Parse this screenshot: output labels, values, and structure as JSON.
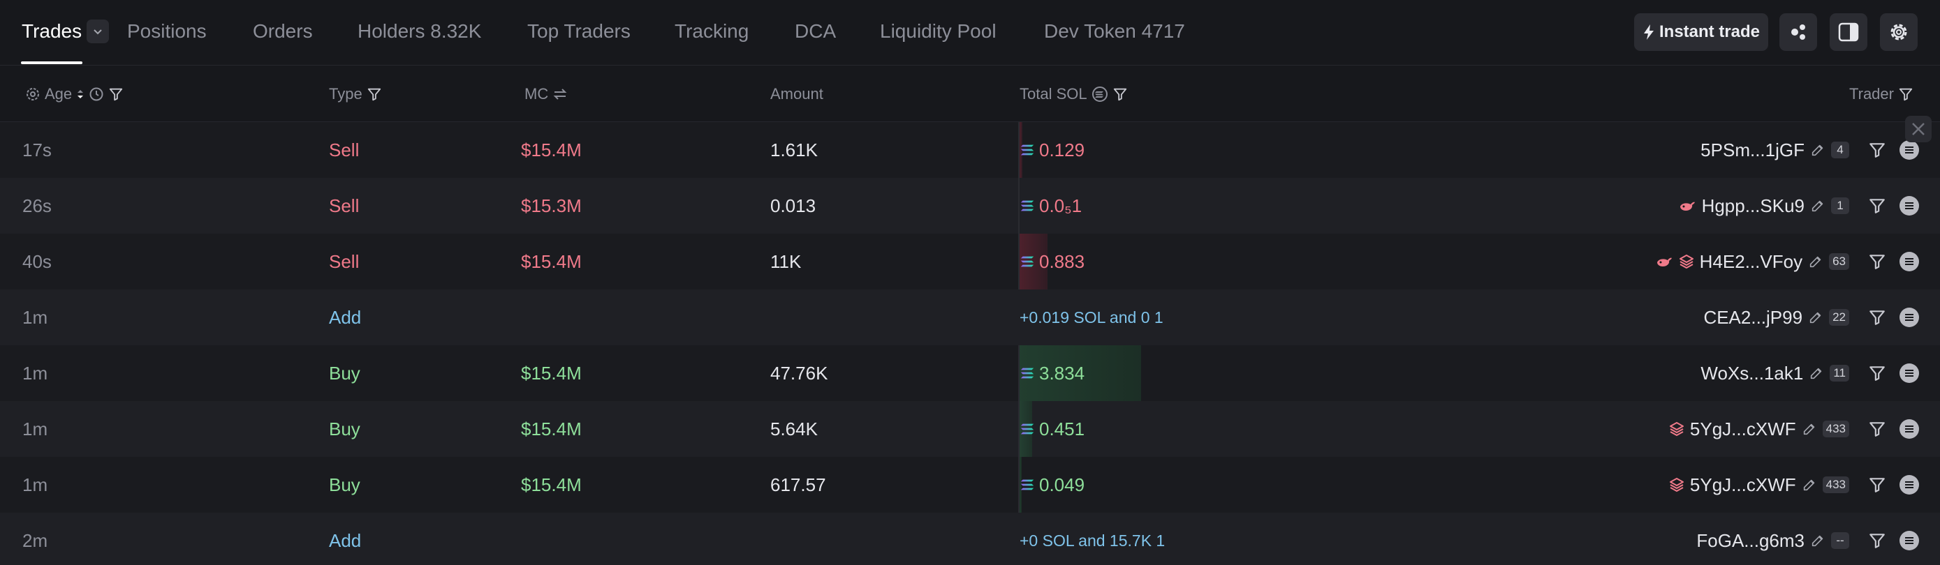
{
  "tabs": {
    "trades": "Trades",
    "positions": "Positions",
    "orders": "Orders",
    "holders": "Holders 8.32K",
    "top_traders": "Top Traders",
    "tracking": "Tracking",
    "dca": "DCA",
    "liquidity_pool": "Liquidity Pool",
    "dev_token": "Dev Token 4717"
  },
  "toolbar": {
    "instant_trade": "Instant trade"
  },
  "columns": {
    "age": "Age",
    "type": "Type",
    "mc": "MC",
    "amount": "Amount",
    "total_sol": "Total SOL",
    "trader": "Trader"
  },
  "rows": [
    {
      "age": "17s",
      "type": "Sell",
      "mc": "$15.4M",
      "amount": "1.61K",
      "total": "0.129",
      "trader": "5PSm...1jGF",
      "count": "4"
    },
    {
      "age": "26s",
      "type": "Sell",
      "mc": "$15.3M",
      "amount": "0.013",
      "total": "0.0₅1",
      "trader": "Hgpp...SKu9",
      "count": "1"
    },
    {
      "age": "40s",
      "type": "Sell",
      "mc": "$15.4M",
      "amount": "11K",
      "total": "0.883",
      "trader": "H4E2...VFoy",
      "count": "63"
    },
    {
      "age": "1m",
      "type": "Add",
      "mc": "",
      "amount": "",
      "total": "+0.019 SOL and 0 1",
      "trader": "CEA2...jP99",
      "count": "22"
    },
    {
      "age": "1m",
      "type": "Buy",
      "mc": "$15.4M",
      "amount": "47.76K",
      "total": "3.834",
      "trader": "WoXs...1ak1",
      "count": "11"
    },
    {
      "age": "1m",
      "type": "Buy",
      "mc": "$15.4M",
      "amount": "5.64K",
      "total": "0.451",
      "trader": "5YgJ...cXWF",
      "count": "433"
    },
    {
      "age": "1m",
      "type": "Buy",
      "mc": "$15.4M",
      "amount": "617.57",
      "total": "0.049",
      "trader": "5YgJ...cXWF",
      "count": "433"
    },
    {
      "age": "2m",
      "type": "Add",
      "mc": "",
      "amount": "",
      "total": "+0 SOL and 15.7K 1",
      "trader": "FoGA...g6m3",
      "count": "--"
    }
  ],
  "colors": {
    "sell": "#f07a8a",
    "buy": "#8edf9a",
    "add": "#7fc3ea",
    "background": "#17181c"
  },
  "icons": [
    "chevron-down-icon",
    "bolt-icon",
    "share-icon",
    "panel-icon",
    "gear-icon",
    "filter-icon",
    "clock-icon",
    "sort-icon",
    "swap-icon",
    "solana-icon",
    "edit-icon",
    "menu-icon",
    "x-icon"
  ]
}
